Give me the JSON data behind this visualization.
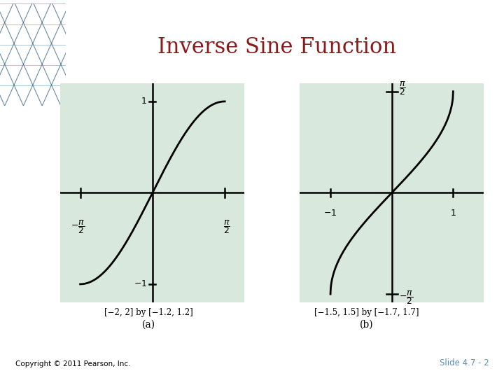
{
  "title": "Inverse Sine Function",
  "title_color": "#8B1A1A",
  "title_fontsize": 22,
  "bg_color": "#FFFFFF",
  "plot_bg_color": "#D8E8DC",
  "copyright": "Copyright © 2011 Pearson, Inc.",
  "slide": "Slide 4.7 - 2",
  "corner_blue": "#5B8DB8",
  "corner_gray": "#A0A8B0",
  "panel_a": {
    "xlim": [
      -2.0,
      2.0
    ],
    "ylim": [
      -1.2,
      1.2
    ],
    "xlabel_range": "[−2, 2] by [−1.2, 1.2]",
    "label": "(a)"
  },
  "panel_b": {
    "xlim": [
      -1.5,
      1.5
    ],
    "ylim": [
      -1.7,
      1.7
    ],
    "xlabel_range": "[−1.5, 1.5] by [−1.7, 1.7]",
    "label": "(b)"
  }
}
